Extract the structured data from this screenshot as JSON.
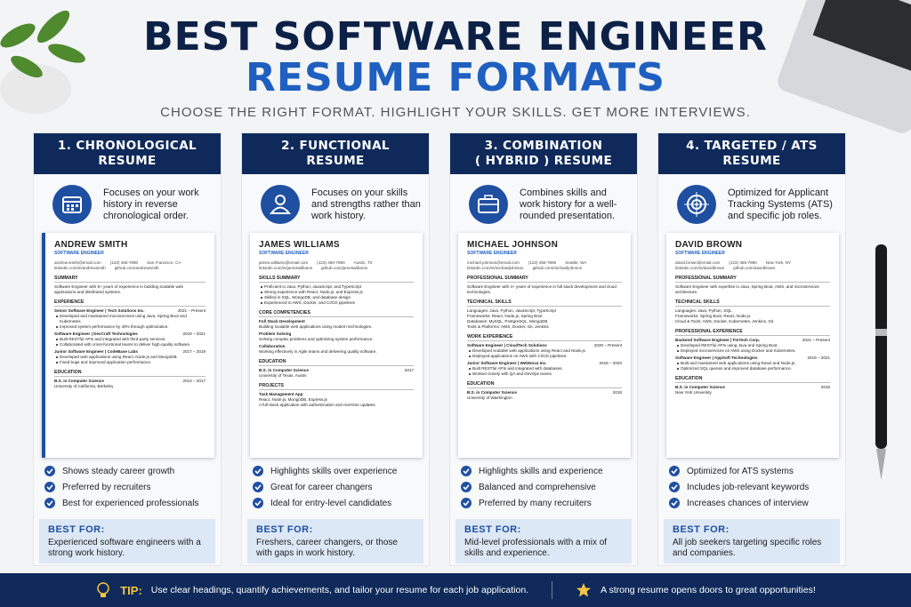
{
  "header": {
    "title_line1": "BEST SOFTWARE ENGINEER",
    "title_line2": "RESUME FORMATS",
    "subtitle": "CHOOSE THE RIGHT FORMAT. HIGHLIGHT YOUR SKILLS. GET MORE INTERVIEWS."
  },
  "cards": [
    {
      "heading": [
        "1. CHRONOLOGICAL",
        "RESUME"
      ],
      "description": "Focuses on your work history in reverse chronological order.",
      "resume": {
        "name": "ANDREW SMITH",
        "role": "SOFTWARE ENGINEER",
        "contacts": [
          "andrew.smith@email.com",
          "(123) 456-7890",
          "San Francisco, CA",
          "linkedin.com/in/andrewsmith",
          "github.com/andrewsmith"
        ],
        "sections": [
          {
            "heading": "SUMMARY",
            "lines": [
              "Software Engineer with 5+ years of experience in building scalable web applications and distributed systems."
            ]
          },
          {
            "heading": "EXPERIENCE",
            "entries": [
              {
                "title": "Senior Software Engineer | Tech Solutions Inc.",
                "date": "2021 – Present",
                "bullets": [
                  "Developed and maintained microservices using Java, Spring Boot and Kubernetes.",
                  "Improved system performance by 40% through optimization."
                ]
              },
              {
                "title": "Software Engineer | DevCraft Technologies",
                "date": "2019 – 2021",
                "bullets": [
                  "Built RESTful APIs and integrated with third-party services.",
                  "Collaborated with cross-functional teams to deliver high-quality software."
                ]
              },
              {
                "title": "Junior Software Engineer | CodeBase Labs",
                "date": "2017 – 2019",
                "bullets": [
                  "Developed web applications using React, Node.js and MongoDB.",
                  "Fixed bugs and improved application performance."
                ]
              }
            ]
          },
          {
            "heading": "EDUCATION",
            "entries": [
              {
                "title": "B.S. in Computer Science",
                "date": "2013 – 2017",
                "subtitle": "University of California, Berkeley"
              }
            ]
          }
        ]
      },
      "benefits": [
        "Shows steady career growth",
        "Preferred by recruiters",
        "Best for experienced professionals"
      ],
      "best_for": {
        "label": "BEST FOR:",
        "text": "Experienced software engineers with a strong work history."
      }
    },
    {
      "heading": [
        "2. FUNCTIONAL",
        "RESUME"
      ],
      "description": "Focuses on your skills and strengths rather than work history.",
      "resume": {
        "name": "JAMES WILLIAMS",
        "role": "SOFTWARE ENGINEER",
        "contacts": [
          "james.williams@email.com",
          "(123) 456-7890",
          "Austin, TX",
          "linkedin.com/in/jameswilliams",
          "github.com/jameswilliams"
        ],
        "sections": [
          {
            "heading": "SKILLS SUMMARY",
            "bullets": [
              "Proficient in Java, Python, JavaScript, and TypeScript",
              "Strong experience with React, Node.js, and Express.js",
              "Skilled in SQL, MongoDB, and database design",
              "Experienced in AWS, Docker, and CI/CD pipelines"
            ]
          },
          {
            "heading": "CORE COMPETENCIES",
            "entries": [
              {
                "title": "Full Stack Development",
                "subtitle": "Building scalable web applications using modern technologies."
              },
              {
                "title": "Problem Solving",
                "subtitle": "Solving complex problems and optimizing system performance."
              },
              {
                "title": "Collaboration",
                "subtitle": "Working effectively in Agile teams and delivering quality software."
              }
            ]
          },
          {
            "heading": "EDUCATION",
            "entries": [
              {
                "title": "B.S. in Computer Science",
                "date": "2017",
                "subtitle": "University of Texas, Austin"
              }
            ]
          },
          {
            "heading": "PROJECTS",
            "entries": [
              {
                "title": "Task Management App",
                "subtitle": "React, Node.js, MongoDB, Express.js"
              }
            ],
            "lines": [
              "A full-stack application with authentication and real-time updates."
            ]
          }
        ]
      },
      "benefits": [
        "Highlights skills over experience",
        "Great for career changers",
        "Ideal for entry-level candidates"
      ],
      "best_for": {
        "label": "BEST FOR:",
        "text": "Freshers, career changers, or those with gaps in work history."
      }
    },
    {
      "heading": [
        "3. COMBINATION",
        "( HYBRID ) RESUME"
      ],
      "description": "Combines skills and work history for a well-rounded presentation.",
      "resume": {
        "name": "MICHAEL JOHNSON",
        "role": "SOFTWARE ENGINEER",
        "contacts": [
          "michael.johnson@email.com",
          "(123) 456-7890",
          "Seattle, WA",
          "linkedin.com/in/michaeljohnson",
          "github.com/michaeljohnson"
        ],
        "sections": [
          {
            "heading": "PROFESSIONAL SUMMARY",
            "lines": [
              "Software Engineer with 4+ years of experience in full stack development and cloud technologies."
            ]
          },
          {
            "heading": "TECHNICAL SKILLS",
            "lines": [
              "Languages: Java, Python, JavaScript, TypeScript",
              "Frameworks: React, Node.js, Spring Boot",
              "Databases: MySQL, PostgreSQL, MongoDB",
              "Tools & Platforms: AWS, Docker, Git, Jenkins"
            ]
          },
          {
            "heading": "WORK EXPERIENCE",
            "entries": [
              {
                "title": "Software Engineer | CloudTech Solutions",
                "date": "2020 – Present",
                "bullets": [
                  "Developed scalable web applications using React and Node.js.",
                  "Deployed applications on AWS with CI/CD pipelines."
                ]
              },
              {
                "title": "Junior Software Engineer | WebNova Inc.",
                "date": "2018 – 2020",
                "bullets": [
                  "Built RESTful APIs and integrated with databases.",
                  "Worked closely with QA and DevOps teams."
                ]
              }
            ]
          },
          {
            "heading": "EDUCATION",
            "entries": [
              {
                "title": "B.S. in Computer Science",
                "date": "2018",
                "subtitle": "University of Washington"
              }
            ]
          }
        ]
      },
      "benefits": [
        "Highlights skills and experience",
        "Balanced and comprehensive",
        "Preferred by many recruiters"
      ],
      "best_for": {
        "label": "BEST FOR:",
        "text": "Mid-level professionals with a mix of skills and experience."
      }
    },
    {
      "heading": [
        "4. TARGETED / ATS",
        "RESUME"
      ],
      "description": "Optimized for Applicant Tracking Systems (ATS) and specific job roles.",
      "resume": {
        "name": "DAVID BROWN",
        "role": "SOFTWARE ENGINEER",
        "contacts": [
          "david.brown@email.com",
          "(123) 456-7890",
          "New York, NY",
          "linkedin.com/in/davidbrown",
          "github.com/davidbrown"
        ],
        "sections": [
          {
            "heading": "PROFESSIONAL SUMMARY",
            "lines": [
              "Software Engineer with expertise in Java, Spring Boot, AWS, and microservices architecture."
            ]
          },
          {
            "heading": "TECHNICAL SKILLS",
            "lines": [
              "Languages: Java, Python, SQL",
              "Frameworks: Spring Boot, React, Node.js",
              "Cloud & Tools: AWS, Docker, Kubernetes, Jenkins, Git"
            ]
          },
          {
            "heading": "PROFESSIONAL EXPERIENCE",
            "entries": [
              {
                "title": "Backend Software Engineer | FinTech Corp.",
                "date": "2021 – Present",
                "bullets": [
                  "Developed RESTful APIs using Java and Spring Boot.",
                  "Deployed microservices on AWS using Docker and Kubernetes."
                ]
              },
              {
                "title": "Software Engineer | AppSoft Technologies",
                "date": "2019 – 2021",
                "bullets": [
                  "Built and maintained web applications using React and Node.js.",
                  "Optimized SQL queries and improved database performance."
                ]
              }
            ]
          },
          {
            "heading": "EDUCATION",
            "entries": [
              {
                "title": "B.S. in Computer Science",
                "date": "2019",
                "subtitle": "New York University"
              }
            ]
          }
        ]
      },
      "benefits": [
        "Optimized for ATS systems",
        "Includes job-relevant keywords",
        "Increases chances of interview"
      ],
      "best_for": {
        "label": "BEST FOR:",
        "text": "All job seekers targeting specific roles and companies."
      }
    }
  ],
  "footer": {
    "tip_label": "TIP:",
    "tip_text": "Use clear headings, quantify achievements, and tailor your resume for each job application.",
    "quote": "A strong resume opens doors to great opportunities!"
  }
}
